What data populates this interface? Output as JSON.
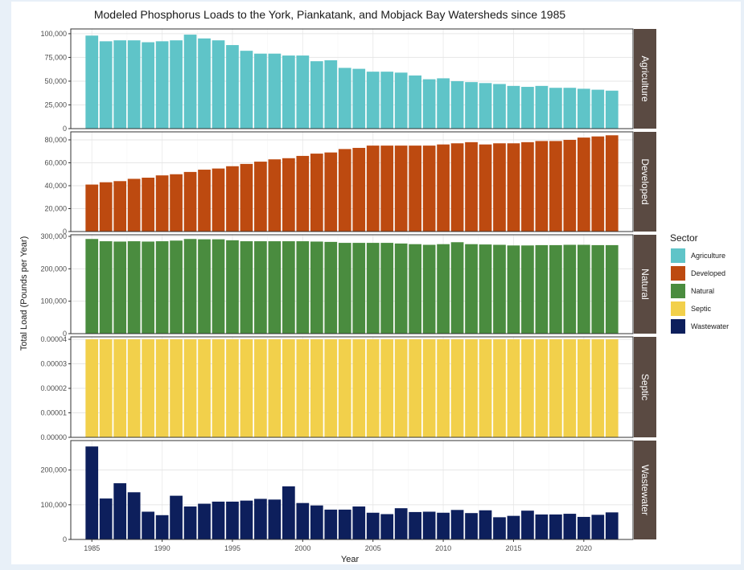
{
  "chart_data": {
    "type": "bar",
    "title": "Modeled Phosphorus Loads to the York, Piankatank, and Mobjack Bay Watersheds since 1985",
    "xlabel": "Year",
    "ylabel": "Total Load (Pounds per Year)",
    "x": [
      1985,
      1986,
      1987,
      1988,
      1989,
      1990,
      1991,
      1992,
      1993,
      1994,
      1995,
      1996,
      1997,
      1998,
      1999,
      2000,
      2001,
      2002,
      2003,
      2004,
      2005,
      2006,
      2007,
      2008,
      2009,
      2010,
      2011,
      2012,
      2013,
      2014,
      2015,
      2016,
      2017,
      2018,
      2019,
      2020,
      2021,
      2022
    ],
    "x_ticks": [
      1985,
      1990,
      1995,
      2000,
      2005,
      2010,
      2015,
      2020
    ],
    "xlim": [
      1983.5,
      2023.5
    ],
    "grid": true,
    "legend": {
      "title": "Sector",
      "placement": "right",
      "entries": [
        {
          "name": "Agriculture",
          "color": "#5fc4c8"
        },
        {
          "name": "Developed",
          "color": "#bd4a10"
        },
        {
          "name": "Natural",
          "color": "#4a8c3f"
        },
        {
          "name": "Septic",
          "color": "#f2d04b"
        },
        {
          "name": "Wastewater",
          "color": "#0d1f5c"
        }
      ]
    },
    "series": [
      {
        "name": "Agriculture",
        "color": "#5fc4c8",
        "ylim": [
          0,
          105000
        ],
        "yticks": [
          0,
          25000,
          50000,
          75000,
          100000
        ],
        "yticklabels": [
          "0",
          "25,000",
          "50,000",
          "75,000",
          "100,000"
        ],
        "values": [
          98000,
          92000,
          93000,
          93000,
          91000,
          92000,
          93000,
          99000,
          95000,
          93000,
          88000,
          82000,
          79000,
          79000,
          77000,
          77000,
          71000,
          72000,
          64000,
          63000,
          60000,
          60000,
          59000,
          56000,
          52000,
          53000,
          50000,
          49000,
          48000,
          47000,
          45000,
          44000,
          45000,
          43000,
          43000,
          42000,
          41000,
          40000
        ]
      },
      {
        "name": "Developed",
        "color": "#bd4a10",
        "ylim": [
          0,
          87000
        ],
        "yticks": [
          0,
          20000,
          40000,
          60000,
          80000
        ],
        "yticklabels": [
          "0",
          "20,000",
          "40,000",
          "60,000",
          "80,000"
        ],
        "values": [
          41000,
          43000,
          44000,
          46000,
          47000,
          49000,
          50000,
          52000,
          54000,
          55000,
          57000,
          59000,
          61000,
          63000,
          64000,
          66000,
          68000,
          69000,
          72000,
          73000,
          75000,
          75000,
          75000,
          75000,
          75000,
          76000,
          77000,
          78000,
          76000,
          77000,
          77000,
          78000,
          79000,
          79000,
          80000,
          82000,
          83000,
          84000
        ]
      },
      {
        "name": "Natural",
        "color": "#4a8c3f",
        "ylim": [
          0,
          305000
        ],
        "yticks": [
          0,
          100000,
          200000,
          300000
        ],
        "yticklabels": [
          "0",
          "100,000",
          "200,000",
          "300,000"
        ],
        "values": [
          292000,
          285000,
          284000,
          285000,
          284000,
          285000,
          287000,
          292000,
          291000,
          291000,
          288000,
          285000,
          285000,
          285000,
          285000,
          285000,
          284000,
          283000,
          280000,
          280000,
          280000,
          280000,
          278000,
          276000,
          274000,
          276000,
          282000,
          276000,
          275000,
          274000,
          272000,
          272000,
          273000,
          273000,
          274000,
          274000,
          273000,
          273000
        ]
      },
      {
        "name": "Septic",
        "color": "#f2d04b",
        "ylim": [
          0,
          4.1e-05
        ],
        "yticks": [
          0,
          1e-05,
          2e-05,
          3e-05,
          4e-05
        ],
        "yticklabels": [
          "0.00000",
          "0.00001",
          "0.00002",
          "0.00003",
          "0.00004"
        ],
        "values": [
          4e-05,
          4e-05,
          4e-05,
          4e-05,
          4e-05,
          4e-05,
          4e-05,
          4e-05,
          4e-05,
          4e-05,
          4e-05,
          4e-05,
          4e-05,
          4e-05,
          4e-05,
          4e-05,
          4e-05,
          4e-05,
          4e-05,
          4e-05,
          4e-05,
          4e-05,
          4e-05,
          4e-05,
          4e-05,
          4e-05,
          4e-05,
          4e-05,
          4e-05,
          4e-05,
          4e-05,
          4e-05,
          4e-05,
          4e-05,
          4e-05,
          4e-05,
          4e-05,
          4e-05
        ]
      },
      {
        "name": "Wastewater",
        "color": "#0d1f5c",
        "ylim": [
          0,
          285000
        ],
        "yticks": [
          0,
          100000,
          200000
        ],
        "yticklabels": [
          "0",
          "100,000",
          "200,000"
        ],
        "values": [
          268000,
          118000,
          162000,
          136000,
          80000,
          70000,
          126000,
          95000,
          103000,
          109000,
          109000,
          112000,
          117000,
          115000,
          153000,
          105000,
          98000,
          86000,
          86000,
          95000,
          77000,
          73000,
          90000,
          79000,
          80000,
          77000,
          85000,
          76000,
          84000,
          64000,
          68000,
          83000,
          72000,
          72000,
          74000,
          65000,
          71000,
          78000
        ]
      }
    ]
  }
}
